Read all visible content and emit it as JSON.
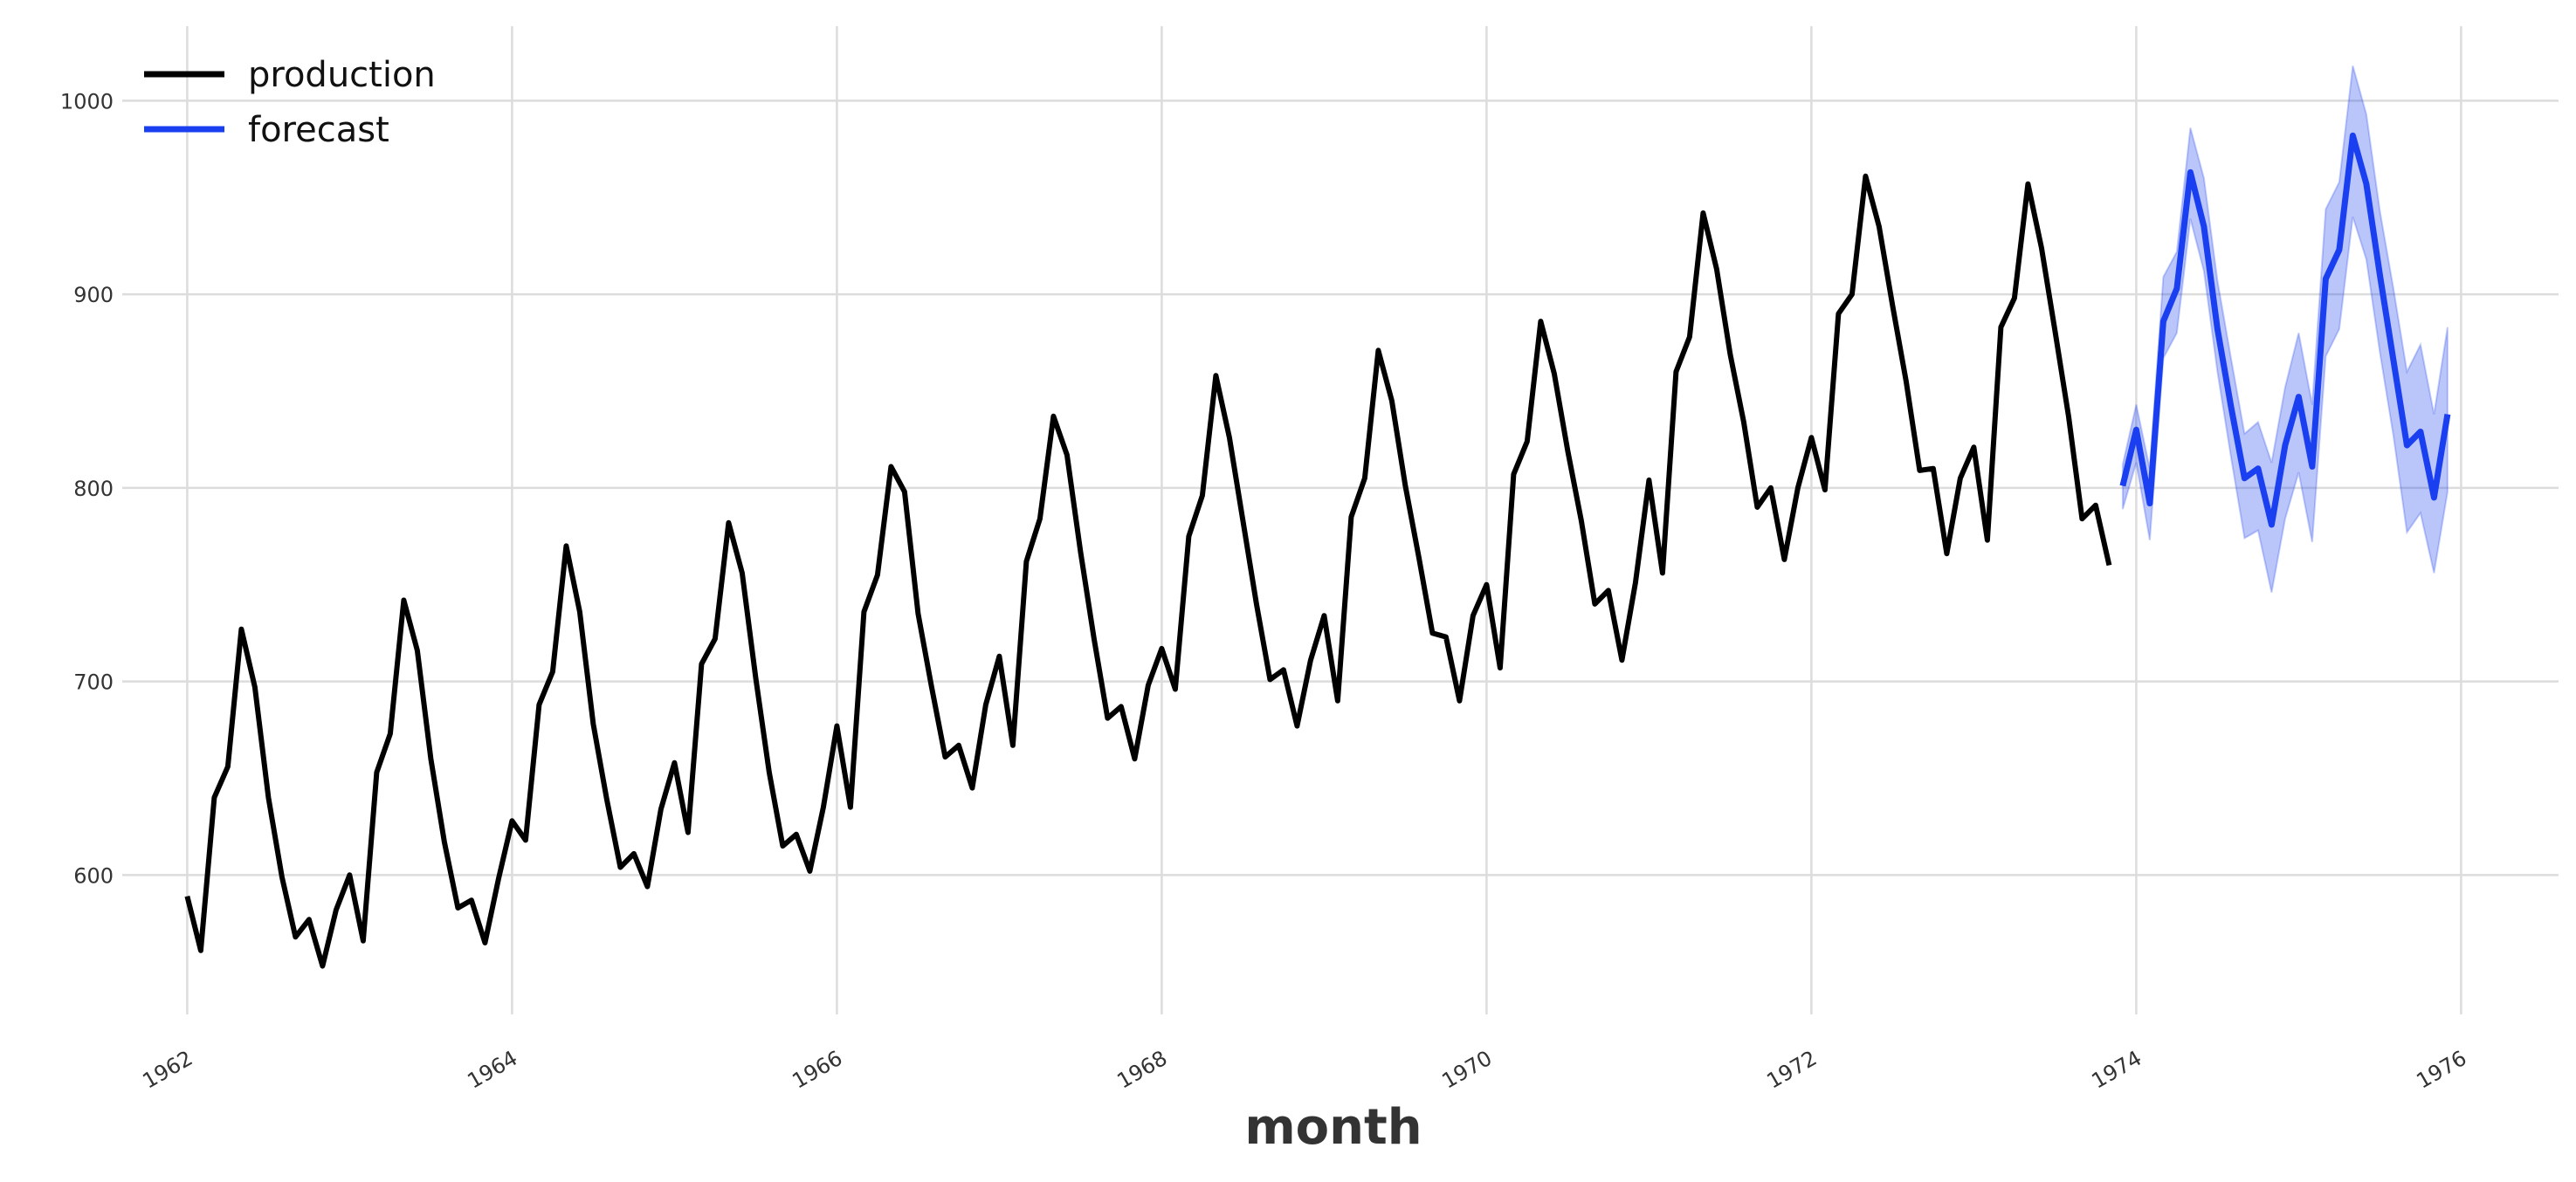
{
  "chart_data": {
    "type": "line",
    "xlabel": "month",
    "ylabel": "",
    "xlim": [
      1961.6,
      1976.6
    ],
    "ylim": [
      528,
      1043
    ],
    "x_ticks": [
      1962,
      1964,
      1966,
      1968,
      1970,
      1972,
      1974,
      1976
    ],
    "x_tick_labels": [
      "1962",
      "1964",
      "1966",
      "1968",
      "1970",
      "1972",
      "1974",
      "1976"
    ],
    "y_ticks": [
      600,
      700,
      800,
      900,
      1000
    ],
    "y_tick_labels": [
      "600",
      "700",
      "800",
      "900",
      "1000"
    ],
    "grid": true,
    "legend_position": "top-left",
    "legend": [
      {
        "name": "production",
        "color": "#000000"
      },
      {
        "name": "forecast",
        "color": "#1a3ff0"
      }
    ],
    "series": [
      {
        "name": "production",
        "color": "#000000",
        "start": "1962-01",
        "frequency": "monthly",
        "values": [
          589,
          561,
          640,
          656,
          727,
          697,
          640,
          599,
          568,
          577,
          553,
          582,
          600,
          566,
          653,
          673,
          742,
          716,
          660,
          617,
          583,
          587,
          565,
          598,
          628,
          618,
          688,
          705,
          770,
          736,
          678,
          639,
          604,
          611,
          594,
          634,
          658,
          622,
          709,
          722,
          782,
          756,
          702,
          653,
          615,
          621,
          602,
          635,
          677,
          635,
          736,
          755,
          811,
          798,
          735,
          697,
          661,
          667,
          645,
          688,
          713,
          667,
          762,
          784,
          837,
          817,
          767,
          722,
          681,
          687,
          660,
          698,
          717,
          696,
          775,
          796,
          858,
          826,
          783,
          740,
          701,
          706,
          677,
          711,
          734,
          690,
          785,
          805,
          871,
          845,
          801,
          764,
          725,
          723,
          690,
          734,
          750,
          707,
          807,
          824,
          886,
          859,
          819,
          783,
          740,
          747,
          711,
          751,
          804,
          756,
          860,
          878,
          942,
          913,
          869,
          834,
          790,
          800,
          763,
          800,
          826,
          799,
          890,
          900,
          961,
          935,
          894,
          855,
          809,
          810,
          766,
          805,
          821,
          773,
          883,
          898,
          957,
          924,
          881,
          837,
          784,
          791,
          760
        ]
      },
      {
        "name": "forecast",
        "color": "#1a3ff0",
        "start": "1973-12",
        "frequency": "monthly",
        "values": [
          801,
          830,
          792,
          886,
          903,
          963,
          935,
          882,
          842,
          805,
          810,
          781,
          822,
          847,
          811,
          908,
          923,
          982,
          957,
          910,
          866,
          822,
          829,
          795,
          838
        ],
        "lower": [
          789,
          813,
          773,
          867,
          880,
          939,
          912,
          860,
          816,
          774,
          778,
          746,
          784,
          808,
          772,
          868,
          882,
          940,
          918,
          870,
          827,
          777,
          787,
          756,
          798
        ],
        "upper": [
          812,
          843,
          810,
          909,
          922,
          986,
          960,
          907,
          867,
          828,
          834,
          813,
          852,
          880,
          843,
          944,
          958,
          1018,
          993,
          943,
          903,
          860,
          874,
          838,
          883
        ]
      }
    ]
  }
}
